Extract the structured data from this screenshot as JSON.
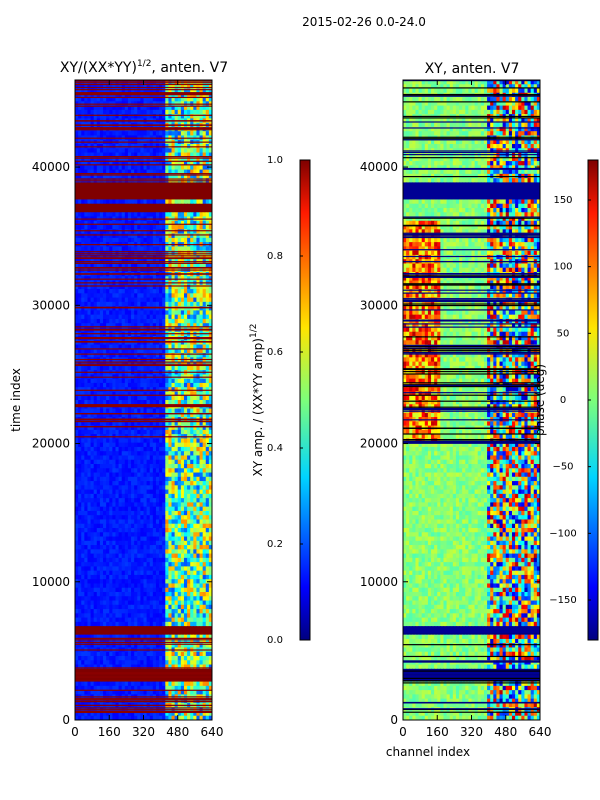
{
  "figure": {
    "suptitle": "2015-02-26 0.0-24.0"
  },
  "chart_data": [
    {
      "type": "heatmap",
      "title_main": "XY/(XX*YY)",
      "title_exp": "1/2",
      "title_tail": ", anten. V7",
      "xlabel": "",
      "ylabel": "time index",
      "xticks": [
        0,
        160,
        320,
        480,
        640
      ],
      "yticks": [
        0,
        10000,
        20000,
        30000,
        40000
      ],
      "xlim": [
        0,
        640
      ],
      "ylim": [
        0,
        46300
      ],
      "colormap": "jet",
      "colorbar": {
        "label_main": "XY amp. / (XX*YY amp)",
        "label_exp": "1/2",
        "range": [
          0.0,
          1.0
        ],
        "ticks": [
          0.0,
          0.2,
          0.4,
          0.6,
          0.8,
          1.0
        ],
        "tick_labels": [
          "0.0",
          "0.2",
          "0.4",
          "0.6",
          "0.8",
          "1.0"
        ]
      },
      "saturated_bands": [
        [
          2800,
          3600
        ],
        [
          6300,
          6800
        ],
        [
          36600,
          37300
        ],
        [
          37600,
          38800
        ]
      ],
      "striped_ranges": [
        [
          500,
          6300
        ],
        [
          20000,
          36600
        ],
        [
          39000,
          46300
        ]
      ],
      "bright_channel_band": [
        420,
        640
      ],
      "background_level": 0.12
    },
    {
      "type": "heatmap",
      "title": "XY, anten. V7",
      "xlabel": "channel index",
      "ylabel": "",
      "xticks": [
        0,
        160,
        320,
        480,
        640
      ],
      "yticks": [
        0,
        10000,
        20000,
        30000,
        40000
      ],
      "xlim": [
        0,
        640
      ],
      "ylim": [
        0,
        46300
      ],
      "colormap": "jet",
      "colorbar": {
        "label": "phase (deg)",
        "range": [
          -180,
          180
        ],
        "ticks": [
          -150,
          -100,
          -50,
          0,
          50,
          100,
          150
        ],
        "tick_labels": [
          "−150",
          "−100",
          "−50",
          "0",
          "50",
          "100",
          "150"
        ]
      },
      "saturated_bands": [
        [
          2800,
          3600
        ],
        [
          6300,
          6800
        ],
        [
          37600,
          38800
        ]
      ],
      "striped_ranges": [
        [
          500,
          6300
        ],
        [
          20000,
          36600
        ],
        [
          39000,
          46300
        ]
      ],
      "bright_channel_band": [
        400,
        640
      ],
      "background_level": 0.45
    }
  ]
}
